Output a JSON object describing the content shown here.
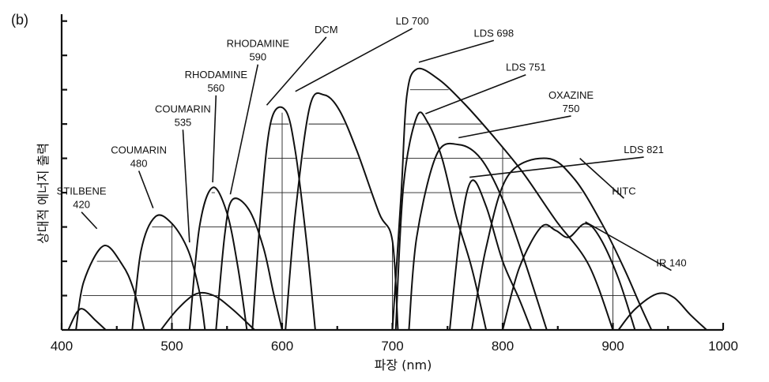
{
  "chart_data": {
    "type": "line",
    "panel_label": "(b)",
    "xlabel": "파장 (nm)",
    "ylabel": "상대적 에너지 출력",
    "xlim": [
      400,
      1000
    ],
    "ylim": [
      0,
      9.2
    ],
    "x_ticks": [
      400,
      500,
      600,
      700,
      800,
      900,
      1000
    ],
    "y_tick_count": 9,
    "grid": "partial horizontal/vertical lines under curves",
    "series": [
      {
        "name": "STILBENE 420",
        "label_lines": [
          "STILBENE",
          "420"
        ],
        "points": [
          [
            413,
            0
          ],
          [
            420,
            1.4
          ],
          [
            438,
            2.45
          ],
          [
            455,
            1.9
          ],
          [
            465,
            1.2
          ],
          [
            475,
            0
          ]
        ]
      },
      {
        "name": "COUMARIN 480",
        "label_lines": [
          "COUMARIN",
          "480"
        ],
        "points": [
          [
            464,
            0
          ],
          [
            472,
            2.3
          ],
          [
            485,
            3.3
          ],
          [
            500,
            3.1
          ],
          [
            515,
            2.3
          ],
          [
            525,
            1.1
          ],
          [
            530,
            0
          ]
        ]
      },
      {
        "name": "COUMARIN 535",
        "label_lines": [
          "COUMARIN",
          "535"
        ],
        "points": [
          [
            516,
            0
          ],
          [
            525,
            3.0
          ],
          [
            537,
            4.15
          ],
          [
            550,
            3.4
          ],
          [
            560,
            1.8
          ],
          [
            568,
            0
          ]
        ]
      },
      {
        "name": "RHODAMINE 560",
        "label_lines": [
          "RHODAMINE",
          "560"
        ],
        "points": [
          [
            540,
            0
          ],
          [
            548,
            2.8
          ],
          [
            555,
            3.8
          ],
          [
            570,
            3.5
          ],
          [
            583,
            2.4
          ],
          [
            592,
            1.1
          ],
          [
            600,
            0
          ]
        ]
      },
      {
        "name": "RHODAMINE 590",
        "label_lines": [
          "RHODAMINE",
          "590"
        ],
        "points": [
          [
            573,
            0
          ],
          [
            581,
            3.6
          ],
          [
            590,
            6.1
          ],
          [
            603,
            6.4
          ],
          [
            612,
            5.2
          ],
          [
            622,
            2.6
          ],
          [
            630,
            0
          ]
        ]
      },
      {
        "name": "DCM",
        "label_lines": [
          "DCM"
        ],
        "points": [
          [
            603,
            0
          ],
          [
            612,
            3.4
          ],
          [
            625,
            6.5
          ],
          [
            638,
            6.85
          ],
          [
            652,
            6.4
          ],
          [
            668,
            5.2
          ],
          [
            688,
            3.4
          ],
          [
            700,
            2.6
          ],
          [
            705,
            0
          ]
        ]
      },
      {
        "name": "LD 700",
        "label_lines": [
          "LD 700"
        ],
        "points": [
          [
            700,
            0
          ],
          [
            708,
            4.0
          ],
          [
            713,
            6.8
          ],
          [
            722,
            7.6
          ],
          [
            742,
            7.3
          ],
          [
            765,
            6.6
          ],
          [
            790,
            5.7
          ],
          [
            818,
            4.6
          ],
          [
            848,
            3.2
          ],
          [
            878,
            1.9
          ],
          [
            900,
            0
          ]
        ]
      },
      {
        "name": "LDS 698",
        "label_lines": [
          "LDS 698"
        ],
        "points": [
          [
            703,
            0
          ],
          [
            710,
            4.2
          ],
          [
            722,
            6.2
          ],
          [
            732,
            6.05
          ],
          [
            745,
            5.0
          ],
          [
            758,
            3.3
          ],
          [
            772,
            1.8
          ],
          [
            785,
            0
          ]
        ]
      },
      {
        "name": "LDS 751",
        "label_lines": [
          "LDS 751"
        ],
        "points": [
          [
            715,
            0
          ],
          [
            722,
            2.7
          ],
          [
            740,
            5.1
          ],
          [
            760,
            5.4
          ],
          [
            780,
            5.0
          ],
          [
            800,
            3.8
          ],
          [
            820,
            2.0
          ],
          [
            840,
            0
          ]
        ]
      },
      {
        "name": "OXAZINE 750",
        "label_lines": [
          "OXAZINE",
          "750"
        ],
        "points": [
          [
            752,
            0
          ],
          [
            762,
            3.0
          ],
          [
            772,
            4.35
          ],
          [
            785,
            3.6
          ],
          [
            800,
            2.0
          ],
          [
            815,
            0.9
          ],
          [
            826,
            0
          ]
        ]
      },
      {
        "name": "LDS 821",
        "label_lines": [
          "LDS 821"
        ],
        "points": [
          [
            772,
            0
          ],
          [
            785,
            2.4
          ],
          [
            805,
            4.5
          ],
          [
            840,
            5.0
          ],
          [
            865,
            4.4
          ],
          [
            890,
            3.1
          ],
          [
            910,
            1.8
          ],
          [
            925,
            0.7
          ],
          [
            935,
            0
          ]
        ]
      },
      {
        "name": "HITC",
        "label_lines": [
          "HITC"
        ],
        "points": [
          [
            800,
            0
          ],
          [
            815,
            1.8
          ],
          [
            835,
            3.0
          ],
          [
            848,
            2.9
          ],
          [
            860,
            2.7
          ],
          [
            875,
            3.1
          ],
          [
            888,
            2.7
          ],
          [
            905,
            1.5
          ],
          [
            920,
            0
          ]
        ]
      },
      {
        "name": "IR 140",
        "label_lines": [
          "IR 140"
        ],
        "points": [
          [
            905,
            0
          ],
          [
            920,
            0.6
          ],
          [
            940,
            1.05
          ],
          [
            955,
            0.95
          ],
          [
            970,
            0.45
          ],
          [
            985,
            0
          ]
        ]
      },
      {
        "name": "",
        "points": [
          [
            406,
            0
          ],
          [
            414,
            0.52
          ],
          [
            420,
            0.6
          ],
          [
            430,
            0.3
          ],
          [
            440,
            0
          ]
        ]
      },
      {
        "name": "",
        "points": [
          [
            490,
            0
          ],
          [
            505,
            0.6
          ],
          [
            522,
            1.05
          ],
          [
            538,
            1.0
          ],
          [
            555,
            0.6
          ],
          [
            575,
            0
          ]
        ]
      }
    ]
  }
}
